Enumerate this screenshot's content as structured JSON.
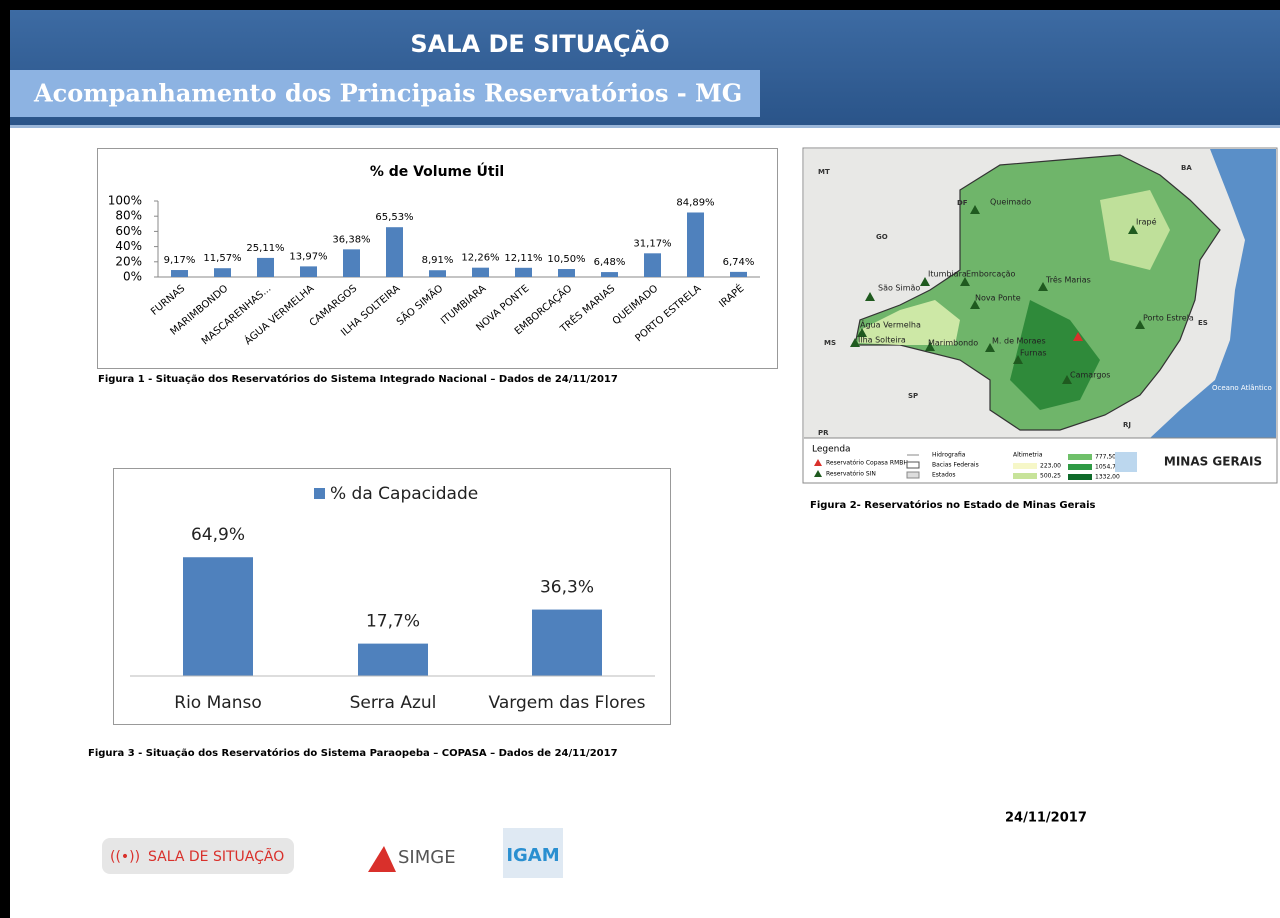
{
  "header": {
    "title": "SALA DE SITUAÇÃO",
    "subtitle": "Acompanhamento dos Principais Reservatórios - MG"
  },
  "chart_data": [
    {
      "type": "bar",
      "title": "% de Volume Útil",
      "categories": [
        "FURNAS",
        "MARIMBONDO",
        "MASCARENHAS...",
        "ÁGUA VERMELHA",
        "CAMARGOS",
        "ILHA SOLTEIRA",
        "SÃO SIMÃO",
        "ITUMBIARA",
        "NOVA PONTE",
        "EMBORCAÇÃO",
        "TRÊS MARIAS",
        "QUEIMADO",
        "PORTO ESTRELA",
        "IRAPÉ"
      ],
      "values": [
        9.17,
        11.57,
        25.11,
        13.97,
        36.38,
        65.53,
        8.91,
        12.26,
        12.11,
        10.5,
        6.48,
        31.17,
        84.89,
        6.74
      ],
      "value_labels": [
        "9,17%",
        "11,57%",
        "25,11%",
        "13,97%",
        "36,38%",
        "65,53%",
        "8,91%",
        "12,26%",
        "12,11%",
        "10,50%",
        "6,48%",
        "31,17%",
        "84,89%",
        "6,74%"
      ],
      "color": "#4f81bd",
      "ylim": [
        0,
        100
      ],
      "yticks": [
        {
          "value": 0,
          "label": "0%"
        },
        {
          "value": 20,
          "label": "20%"
        },
        {
          "value": 40,
          "label": "40%"
        },
        {
          "value": 60,
          "label": "60%"
        },
        {
          "value": 80,
          "label": "80%"
        },
        {
          "value": 100,
          "label": "100%"
        }
      ],
      "caption": "Figura 1 - Situação dos Reservatórios do Sistema Integrado Nacional – Dados de 24/11/2017"
    },
    {
      "type": "bar",
      "categories": [
        "Rio Manso",
        "Serra Azul",
        "Vargem das Flores"
      ],
      "series": [
        {
          "name": "% da Capacidade",
          "color": "#4f81bd",
          "values": [
            64.9,
            17.7,
            36.3
          ],
          "value_labels": [
            "64,9%",
            "17,7%",
            "36,3%"
          ]
        }
      ],
      "caption": "Figura 3 - Situação dos Reservatórios do Sistema Paraopeba – COPASA – Dados de 24/11/2017"
    }
  ],
  "map": {
    "reservoirs": [
      "Queimado",
      "Irapé",
      "Três Marias",
      "Itumbiara",
      "Emborcação",
      "São Simão",
      "Nova Ponte",
      "Porto Estrela",
      "Água Vermelha",
      "Ilha Solteira",
      "Marimbondo",
      "M. de Moraes",
      "Furnas",
      "Camargos"
    ],
    "states": [
      "MT",
      "GO",
      "DF",
      "BA",
      "MS",
      "SP",
      "ES",
      "RJ",
      "PR"
    ],
    "ocean": "Oceano Atlântico",
    "legend": {
      "title": "Legenda",
      "copasa": "Reservatório Copasa RMBH",
      "sin": "Reservatório SIN",
      "hydro": "Hidrografia",
      "basins": "Bacias Federais",
      "states": "Estados",
      "altimetry": "Altimetria",
      "levels": [
        "223,00",
        "500,25",
        "777,50",
        "1054,75",
        "1332,00"
      ]
    },
    "logo": "MINAS GERAIS",
    "caption": "Figura 2- Reservatórios no Estado de Minas Gerais"
  },
  "date": "24/11/2017",
  "logos": [
    "SALA DE SITUAÇÃO",
    "SIMGE",
    "IGAM"
  ]
}
